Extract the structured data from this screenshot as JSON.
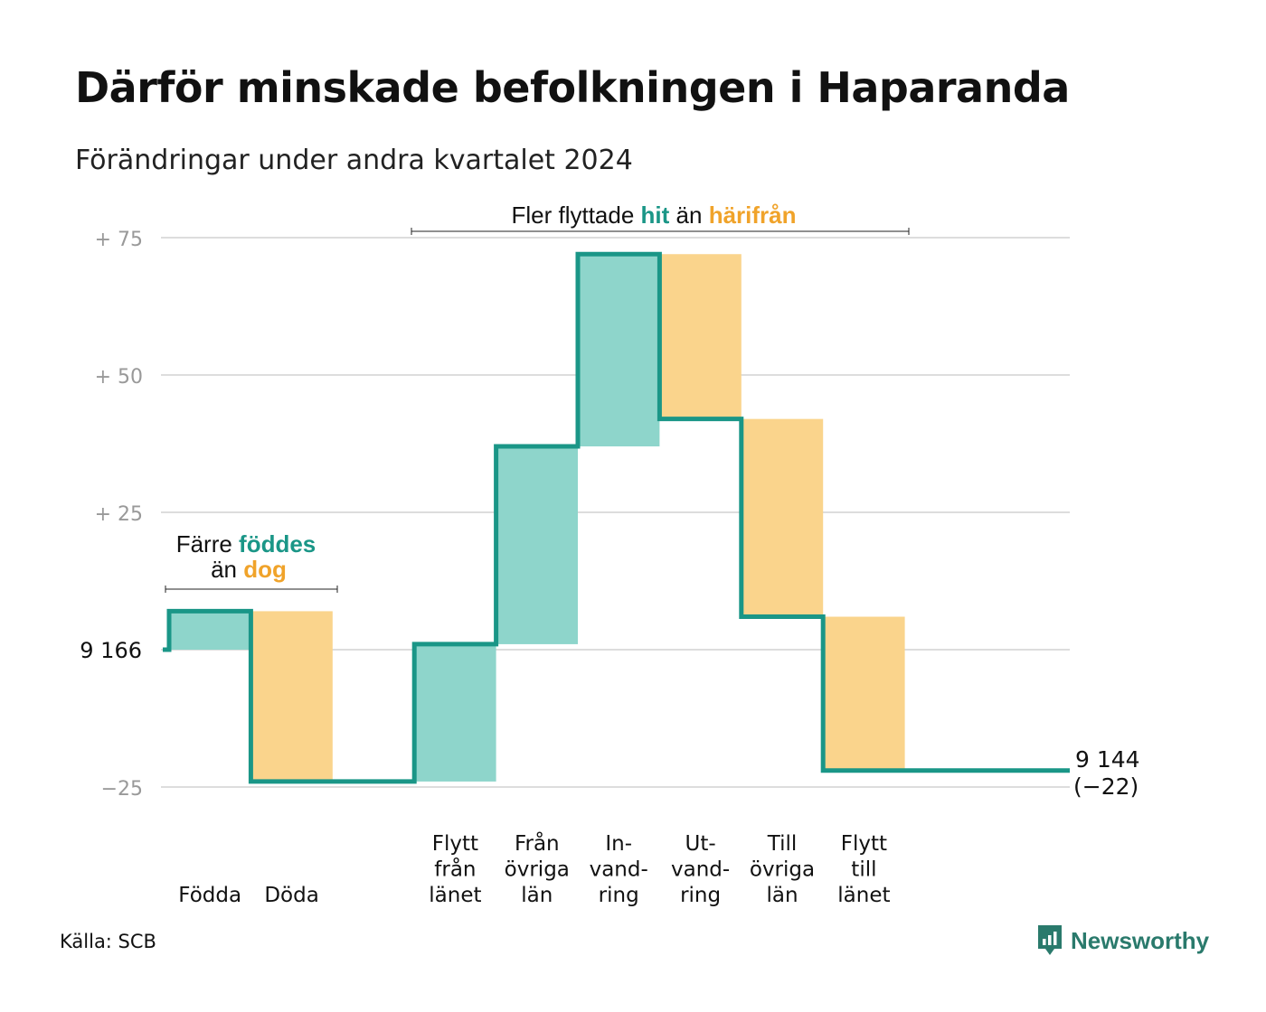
{
  "title": "Därför minskade befolkningen i Haparanda",
  "subtitle": "Förändringar under andra kvartalet 2024",
  "source": "Källa: SCB",
  "brand": "Newsworthy",
  "colors": {
    "increase_fill": "#8ed5cb",
    "decrease_fill": "#fad48c",
    "line": "#1a9687",
    "teal_text": "#1a9687",
    "orange_text": "#f0a32a",
    "grid": "#dddddd",
    "tick": "#999999"
  },
  "annotations": {
    "births": {
      "line1_pre": "Färre ",
      "line1_em": "föddes",
      "line2_pre": "än ",
      "line2_em": "dog"
    },
    "migration": {
      "pre": "Fler flyttade ",
      "em1": "hit",
      "mid": " än ",
      "em2": "härifrån"
    }
  },
  "chart_data": {
    "type": "waterfall",
    "title": "Därför minskade befolkningen i Haparanda",
    "subtitle": "Förändringar under andra kvartalet 2024",
    "start_value": 9166,
    "end_value": 9144,
    "end_change_label": "(−22)",
    "ylim": [
      -25,
      75
    ],
    "y_ticks": [
      {
        "value": 75,
        "label": "+  75"
      },
      {
        "value": 50,
        "label": "+  50"
      },
      {
        "value": 25,
        "label": "+  25"
      },
      {
        "value": 0,
        "label": "9  166"
      },
      {
        "value": -25,
        "label": "−25"
      }
    ],
    "grid": true,
    "steps": [
      {
        "label": [
          "Födda"
        ],
        "change": 7,
        "type": "increase"
      },
      {
        "label": [
          "Döda"
        ],
        "change": -31,
        "type": "decrease"
      },
      {
        "label": [],
        "change": 0,
        "type": "gap"
      },
      {
        "label": [
          "Flytt",
          "från",
          "länet"
        ],
        "change": 25,
        "type": "increase"
      },
      {
        "label": [
          "Från",
          "övriga",
          "län"
        ],
        "change": 36,
        "type": "increase"
      },
      {
        "label": [
          "In-",
          "vand-",
          "ring"
        ],
        "change": 35,
        "type": "increase"
      },
      {
        "label": [
          "Ut-",
          "vand-",
          "ring"
        ],
        "change": -30,
        "type": "decrease"
      },
      {
        "label": [
          "Till",
          "övriga",
          "län"
        ],
        "change": -36,
        "type": "decrease"
      },
      {
        "label": [
          "Flytt",
          "till",
          "länet"
        ],
        "change": -28,
        "type": "decrease"
      }
    ]
  }
}
